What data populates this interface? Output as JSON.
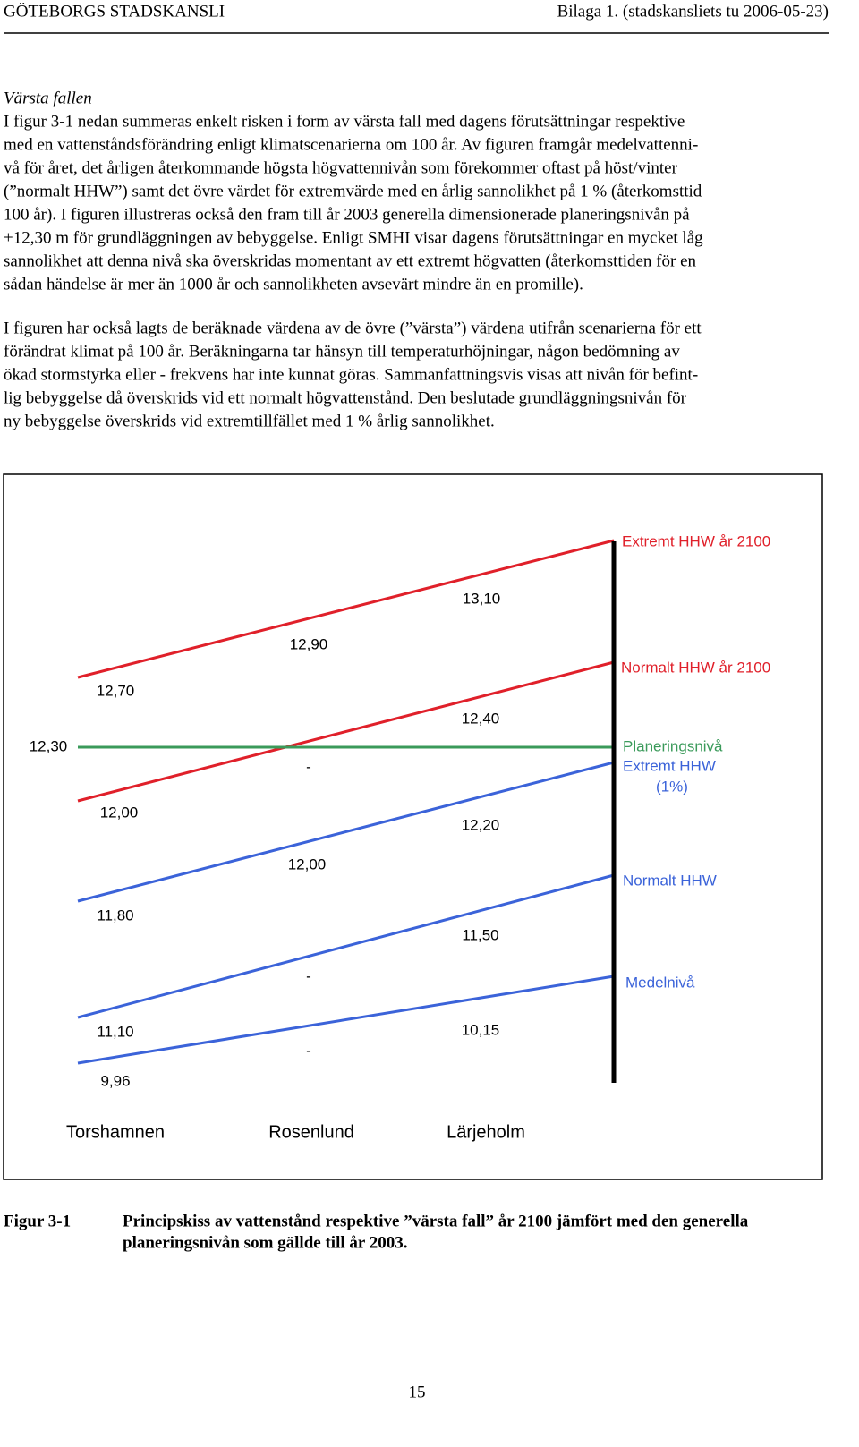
{
  "header": {
    "left": "GÖTEBORGS STADSKANSLI",
    "right": "Bilaga 1. (stadskansliets tu 2006-05-23)"
  },
  "section_title": "Värsta fallen",
  "paragraphs": [
    [
      "I figur 3-1 nedan summeras enkelt risken i form av värsta fall med dagens förutsättningar respektive",
      "med en vattenståndsförändring enligt klimatscenarierna om 100 år. Av figuren framgår medelvattenni-",
      "vå för året, det årligen återkommande högsta högvattennivån som förekommer oftast på höst/vinter",
      "(”normalt HHW”) samt det övre värdet för extremvärde med en årlig sannolikhet på 1 % (återkomsttid",
      "100 år). I figuren illustreras också den fram till år 2003 generella dimensionerade planeringsnivån på",
      "+12,30 m för grundläggningen av bebyggelse. Enligt SMHI visar dagens förutsättningar en mycket låg",
      "sannolikhet att denna nivå ska överskridas momentant av ett extremt högvatten (återkomsttiden för en",
      "sådan händelse är mer än 1000 år och sannolikheten avsevärt mindre än en promille)."
    ],
    [
      "I figuren har också lagts de beräknade värdena av de övre (”värsta”) värdena utifrån scenarierna för ett",
      "förändrat klimat på 100 år. Beräkningarna tar hänsyn till temperaturhöjningar, någon bedömning av",
      "ökad stormstyrka eller - frekvens har inte kunnat göras. Sammanfattningsvis visas att nivån för befint-",
      "lig bebyggelse då överskrids vid ett normalt högvattenstånd. Den beslutade grundläggningsnivån för",
      "ny bebyggelse överskrids vid extremtillfället med 1 % årlig sannolikhet."
    ]
  ],
  "figure": {
    "value_labels": [
      "13,10",
      "12,90",
      "12,70",
      "12,40",
      "12,30",
      "-",
      "12,00",
      "12,20",
      "12,00",
      "11,80",
      "11,50",
      "-",
      "11,10",
      "10,15",
      "-",
      "9,96"
    ],
    "legend": [
      "Extremt HHW år 2100",
      "Normalt HHW år 2100",
      "Planeringsnivå",
      "Extremt HHW",
      "(1%)",
      "Normalt HHW",
      "Medelnivå"
    ],
    "locations": [
      "Torshamnen",
      "Rosenlund",
      "Lärjeholm"
    ]
  },
  "caption": {
    "label": "Figur 3-1",
    "lines": [
      "Principskiss av vattenstånd respektive ”värsta fall” år 2100 jämfört med den generella",
      "planeringsnivån som gällde till år 2003."
    ]
  },
  "page_number": "15"
}
